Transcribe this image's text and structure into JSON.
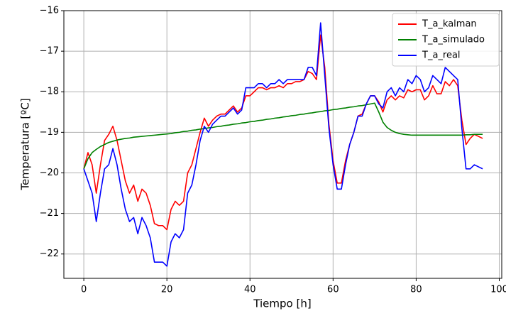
{
  "chart_data": {
    "type": "line",
    "xlabel": "Tiempo [h]",
    "ylabel": "Temperatura [ºC]",
    "x": [
      0,
      1,
      2,
      3,
      4,
      5,
      6,
      7,
      8,
      9,
      10,
      11,
      12,
      13,
      14,
      15,
      16,
      17,
      18,
      19,
      20,
      21,
      22,
      23,
      24,
      25,
      26,
      27,
      28,
      29,
      30,
      31,
      32,
      33,
      34,
      35,
      36,
      37,
      38,
      39,
      40,
      41,
      42,
      43,
      44,
      45,
      46,
      47,
      48,
      49,
      50,
      51,
      52,
      53,
      54,
      55,
      56,
      57,
      58,
      59,
      60,
      61,
      62,
      63,
      64,
      65,
      66,
      67,
      68,
      69,
      70,
      71,
      72,
      73,
      74,
      75,
      76,
      77,
      78,
      79,
      80,
      81,
      82,
      83,
      84,
      85,
      86,
      87,
      88,
      89,
      90,
      91,
      92,
      93,
      94,
      95,
      96
    ],
    "series": [
      {
        "name": "T_a_kalman",
        "color": "#ff0000",
        "values": [
          -19.9,
          -19.5,
          -19.8,
          -20.5,
          -19.8,
          -19.2,
          -19.05,
          -18.85,
          -19.2,
          -19.7,
          -20.2,
          -20.5,
          -20.3,
          -20.7,
          -20.4,
          -20.5,
          -20.8,
          -21.25,
          -21.3,
          -21.3,
          -21.4,
          -20.9,
          -20.7,
          -20.8,
          -20.7,
          -20.0,
          -19.8,
          -19.4,
          -19.0,
          -18.65,
          -18.85,
          -18.7,
          -18.6,
          -18.55,
          -18.55,
          -18.45,
          -18.35,
          -18.5,
          -18.4,
          -18.1,
          -18.1,
          -18.0,
          -17.9,
          -17.9,
          -17.95,
          -17.9,
          -17.9,
          -17.85,
          -17.9,
          -17.8,
          -17.8,
          -17.75,
          -17.75,
          -17.7,
          -17.5,
          -17.55,
          -17.7,
          -16.6,
          -17.4,
          -18.8,
          -19.7,
          -20.25,
          -20.25,
          -19.7,
          -19.3,
          -19.0,
          -18.6,
          -18.55,
          -18.3,
          -18.1,
          -18.1,
          -18.25,
          -18.5,
          -18.2,
          -18.1,
          -18.2,
          -18.1,
          -18.15,
          -17.95,
          -18.0,
          -17.95,
          -17.95,
          -18.2,
          -18.1,
          -17.85,
          -18.05,
          -18.05,
          -17.75,
          -17.85,
          -17.7,
          -17.85,
          -18.7,
          -19.3,
          -19.15,
          -19.05,
          -19.1,
          -19.15
        ]
      },
      {
        "name": "T_a_simulado",
        "color": "#008000",
        "values": [
          -19.9,
          -19.65,
          -19.5,
          -19.42,
          -19.35,
          -19.3,
          -19.25,
          -19.22,
          -19.19,
          -19.17,
          -19.15,
          -19.14,
          -19.12,
          -19.11,
          -19.1,
          -19.09,
          -19.08,
          -19.07,
          -19.06,
          -19.05,
          -19.04,
          -19.03,
          -19.01,
          -19.0,
          -18.98,
          -18.97,
          -18.95,
          -18.94,
          -18.92,
          -18.91,
          -18.89,
          -18.88,
          -18.86,
          -18.85,
          -18.83,
          -18.82,
          -18.8,
          -18.79,
          -18.77,
          -18.76,
          -18.74,
          -18.73,
          -18.71,
          -18.7,
          -18.68,
          -18.67,
          -18.65,
          -18.64,
          -18.62,
          -18.61,
          -18.59,
          -18.58,
          -18.56,
          -18.55,
          -18.53,
          -18.52,
          -18.5,
          -18.49,
          -18.47,
          -18.46,
          -18.44,
          -18.43,
          -18.41,
          -18.4,
          -18.38,
          -18.37,
          -18.35,
          -18.34,
          -18.32,
          -18.3,
          -18.28,
          -18.5,
          -18.75,
          -18.88,
          -18.95,
          -19.0,
          -19.03,
          -19.05,
          -19.06,
          -19.07,
          -19.07,
          -19.07,
          -19.07,
          -19.07,
          -19.07,
          -19.07,
          -19.07,
          -19.07,
          -19.07,
          -19.07,
          -19.07,
          -19.07,
          -19.06,
          -19.06,
          -19.05,
          -19.05,
          -19.05
        ]
      },
      {
        "name": "T_a_real",
        "color": "#0000ff",
        "values": [
          -19.9,
          -20.2,
          -20.5,
          -21.2,
          -20.5,
          -19.9,
          -19.8,
          -19.4,
          -19.8,
          -20.4,
          -20.9,
          -21.2,
          -21.1,
          -21.5,
          -21.1,
          -21.3,
          -21.6,
          -22.2,
          -22.2,
          -22.2,
          -22.3,
          -21.7,
          -21.5,
          -21.6,
          -21.4,
          -20.5,
          -20.3,
          -19.8,
          -19.2,
          -18.85,
          -19.0,
          -18.8,
          -18.7,
          -18.6,
          -18.6,
          -18.5,
          -18.4,
          -18.55,
          -18.45,
          -17.9,
          -17.9,
          -17.9,
          -17.8,
          -17.8,
          -17.9,
          -17.8,
          -17.8,
          -17.7,
          -17.8,
          -17.7,
          -17.7,
          -17.7,
          -17.7,
          -17.7,
          -17.4,
          -17.4,
          -17.6,
          -16.3,
          -17.6,
          -18.9,
          -19.8,
          -20.4,
          -20.4,
          -19.8,
          -19.3,
          -19.0,
          -18.6,
          -18.6,
          -18.3,
          -18.1,
          -18.1,
          -18.3,
          -18.4,
          -18.0,
          -17.9,
          -18.1,
          -17.9,
          -18.0,
          -17.7,
          -17.8,
          -17.6,
          -17.7,
          -18.0,
          -17.9,
          -17.6,
          -17.7,
          -17.8,
          -17.4,
          -17.5,
          -17.6,
          -17.7,
          -18.9,
          -19.9,
          -19.9,
          -19.8,
          -19.85,
          -19.9
        ]
      }
    ],
    "xlim": [
      -4.8,
      100.6
    ],
    "ylim": [
      -22.6,
      -16
    ],
    "xticks": [
      0,
      20,
      40,
      60,
      80,
      100
    ],
    "yticks": [
      {
        "value": -22,
        "label": "−22"
      },
      {
        "value": -21,
        "label": "−21"
      },
      {
        "value": -20,
        "label": "−20"
      },
      {
        "value": -19,
        "label": "−19"
      },
      {
        "value": -18,
        "label": "−18"
      },
      {
        "value": -17,
        "label": "−17"
      },
      {
        "value": -16,
        "label": "−16"
      }
    ],
    "grid": true,
    "legend": "upper right"
  }
}
